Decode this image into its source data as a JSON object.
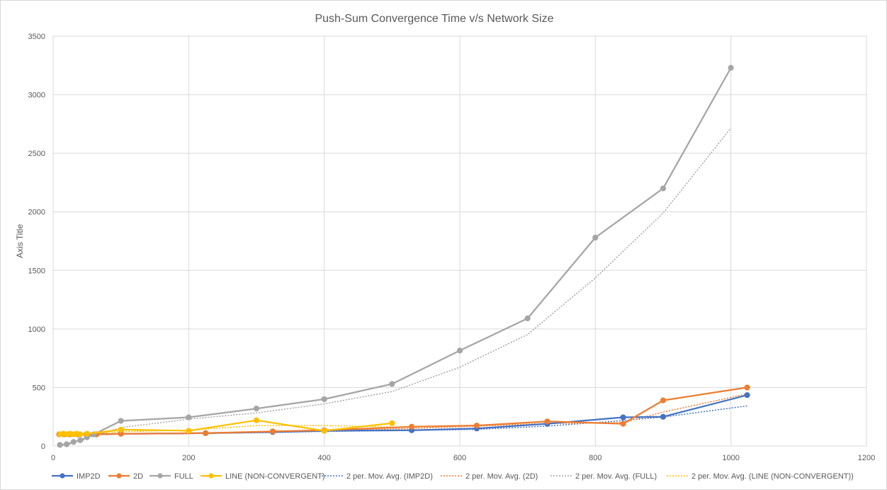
{
  "chart_data": {
    "type": "line",
    "title": "Push-Sum Convergence Time v/s Network Size",
    "xlabel": "",
    "ylabel": "Axis Title",
    "xlim": [
      0,
      1200
    ],
    "ylim": [
      0,
      3500
    ],
    "xticks": [
      0,
      200,
      400,
      600,
      800,
      1000,
      1200
    ],
    "yticks": [
      0,
      500,
      1000,
      1500,
      2000,
      2500,
      3000,
      3500
    ],
    "grid": true,
    "legend_position": "bottom",
    "series": [
      {
        "name": "IMP2D",
        "color": "#4472C4",
        "points": [
          [
            9,
            100
          ],
          [
            16,
            100
          ],
          [
            25,
            100
          ],
          [
            36,
            100
          ],
          [
            49,
            100
          ],
          [
            64,
            100
          ],
          [
            100,
            105
          ],
          [
            225,
            110
          ],
          [
            324,
            120
          ],
          [
            400,
            130
          ],
          [
            529,
            135
          ],
          [
            625,
            150
          ],
          [
            729,
            190
          ],
          [
            841,
            245
          ],
          [
            900,
            250
          ],
          [
            1024,
            435
          ]
        ]
      },
      {
        "name": "2D",
        "color": "#ED7D31",
        "points": [
          [
            9,
            100
          ],
          [
            16,
            100
          ],
          [
            25,
            100
          ],
          [
            36,
            100
          ],
          [
            49,
            100
          ],
          [
            64,
            100
          ],
          [
            100,
            105
          ],
          [
            225,
            110
          ],
          [
            324,
            125
          ],
          [
            400,
            135
          ],
          [
            529,
            165
          ],
          [
            625,
            175
          ],
          [
            729,
            210
          ],
          [
            841,
            190
          ],
          [
            900,
            390
          ],
          [
            1024,
            500
          ]
        ]
      },
      {
        "name": "FULL",
        "color": "#A5A5A5",
        "points": [
          [
            10,
            10
          ],
          [
            20,
            15
          ],
          [
            30,
            35
          ],
          [
            40,
            50
          ],
          [
            50,
            75
          ],
          [
            60,
            100
          ],
          [
            100,
            215
          ],
          [
            200,
            245
          ],
          [
            300,
            320
          ],
          [
            400,
            400
          ],
          [
            500,
            530
          ],
          [
            600,
            815
          ],
          [
            700,
            1090
          ],
          [
            800,
            1780
          ],
          [
            900,
            2200
          ],
          [
            1000,
            3230
          ]
        ]
      },
      {
        "name": "LINE (NON-CONVERGENT)",
        "color": "#FFC000",
        "points": [
          [
            10,
            100
          ],
          [
            15,
            105
          ],
          [
            20,
            100
          ],
          [
            25,
            105
          ],
          [
            30,
            100
          ],
          [
            35,
            105
          ],
          [
            40,
            100
          ],
          [
            50,
            105
          ],
          [
            100,
            140
          ],
          [
            200,
            130
          ],
          [
            300,
            220
          ],
          [
            400,
            130
          ],
          [
            500,
            195
          ]
        ]
      }
    ],
    "trendlines": [
      {
        "name": "2 per. Mov. Avg. (IMP2D)",
        "of": "IMP2D",
        "type": "moving_average",
        "period": 2,
        "color": "#4472C4"
      },
      {
        "name": "2 per. Mov. Avg. (2D)",
        "of": "2D",
        "type": "moving_average",
        "period": 2,
        "color": "#ED7D31"
      },
      {
        "name": "2 per. Mov. Avg. (FULL)",
        "of": "FULL",
        "type": "moving_average",
        "period": 2,
        "color": "#A5A5A5"
      },
      {
        "name": "2 per. Mov. Avg. (LINE (NON-CONVERGENT))",
        "of": "LINE (NON-CONVERGENT)",
        "type": "moving_average",
        "period": 2,
        "color": "#FFC000"
      }
    ]
  }
}
